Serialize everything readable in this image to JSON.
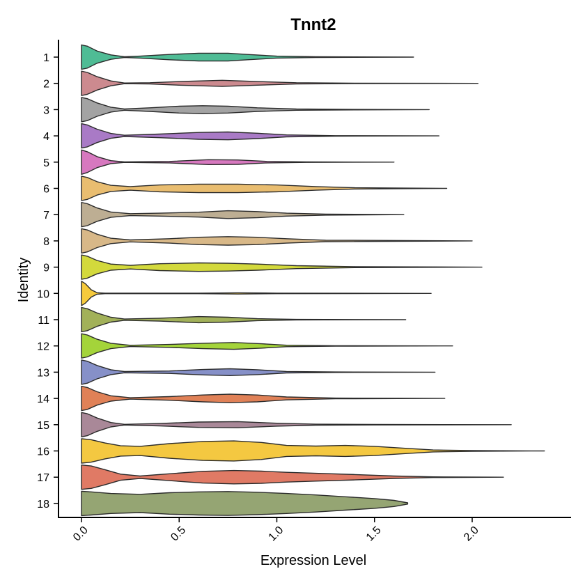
{
  "chart_data": {
    "type": "violin",
    "orientation": "horizontal",
    "title": "Tnnt2",
    "xlabel": "Expression Level",
    "ylabel": "Identity",
    "xlim": [
      -0.12,
      2.5
    ],
    "xticks": [
      "0.0",
      "0.5",
      "1.0",
      "1.5",
      "2.0"
    ],
    "xtick_values": [
      0.0,
      0.5,
      1.0,
      1.5,
      2.0
    ],
    "grid": false,
    "legend": "none",
    "categories": [
      "1",
      "2",
      "3",
      "4",
      "5",
      "6",
      "7",
      "8",
      "9",
      "10",
      "11",
      "12",
      "13",
      "14",
      "15",
      "16",
      "17",
      "18"
    ],
    "series": [
      {
        "max": 1.7,
        "color": "#4fbc95",
        "density": [
          [
            0.0,
            1.0
          ],
          [
            0.03,
            0.9
          ],
          [
            0.08,
            0.5
          ],
          [
            0.15,
            0.18
          ],
          [
            0.22,
            0.03
          ],
          [
            0.3,
            0.08
          ],
          [
            0.45,
            0.22
          ],
          [
            0.6,
            0.32
          ],
          [
            0.75,
            0.32
          ],
          [
            0.85,
            0.22
          ],
          [
            1.0,
            0.08
          ],
          [
            1.2,
            0.03
          ],
          [
            1.7,
            0.0
          ]
        ]
      },
      {
        "max": 2.03,
        "color": "#cc8a8f",
        "density": [
          [
            0.0,
            1.0
          ],
          [
            0.03,
            0.9
          ],
          [
            0.08,
            0.55
          ],
          [
            0.15,
            0.2
          ],
          [
            0.22,
            0.03
          ],
          [
            0.35,
            0.05
          ],
          [
            0.5,
            0.15
          ],
          [
            0.72,
            0.25
          ],
          [
            0.9,
            0.15
          ],
          [
            1.1,
            0.05
          ],
          [
            1.4,
            0.02
          ],
          [
            2.03,
            0.0
          ]
        ]
      },
      {
        "max": 1.78,
        "color": "#a3a3a3",
        "density": [
          [
            0.0,
            1.0
          ],
          [
            0.03,
            0.9
          ],
          [
            0.08,
            0.55
          ],
          [
            0.15,
            0.2
          ],
          [
            0.22,
            0.05
          ],
          [
            0.35,
            0.15
          ],
          [
            0.5,
            0.28
          ],
          [
            0.62,
            0.32
          ],
          [
            0.75,
            0.28
          ],
          [
            0.9,
            0.15
          ],
          [
            1.1,
            0.05
          ],
          [
            1.4,
            0.02
          ],
          [
            1.78,
            0.0
          ]
        ]
      },
      {
        "max": 1.83,
        "color": "#a97ac6",
        "density": [
          [
            0.0,
            1.0
          ],
          [
            0.03,
            0.9
          ],
          [
            0.08,
            0.55
          ],
          [
            0.15,
            0.2
          ],
          [
            0.22,
            0.05
          ],
          [
            0.4,
            0.15
          ],
          [
            0.6,
            0.28
          ],
          [
            0.75,
            0.32
          ],
          [
            0.9,
            0.22
          ],
          [
            1.05,
            0.08
          ],
          [
            1.3,
            0.02
          ],
          [
            1.83,
            0.0
          ]
        ]
      },
      {
        "max": 1.6,
        "color": "#d778bf",
        "density": [
          [
            0.0,
            1.0
          ],
          [
            0.03,
            0.85
          ],
          [
            0.08,
            0.45
          ],
          [
            0.15,
            0.12
          ],
          [
            0.22,
            0.02
          ],
          [
            0.45,
            0.06
          ],
          [
            0.65,
            0.2
          ],
          [
            0.8,
            0.18
          ],
          [
            0.95,
            0.06
          ],
          [
            1.15,
            0.02
          ],
          [
            1.6,
            0.0
          ]
        ]
      },
      {
        "max": 1.87,
        "color": "#e9bd70",
        "density": [
          [
            0.0,
            1.0
          ],
          [
            0.03,
            0.9
          ],
          [
            0.08,
            0.55
          ],
          [
            0.15,
            0.25
          ],
          [
            0.25,
            0.15
          ],
          [
            0.4,
            0.28
          ],
          [
            0.6,
            0.35
          ],
          [
            0.8,
            0.35
          ],
          [
            1.0,
            0.28
          ],
          [
            1.2,
            0.15
          ],
          [
            1.4,
            0.05
          ],
          [
            1.87,
            0.0
          ]
        ]
      },
      {
        "max": 1.65,
        "color": "#bdae93",
        "density": [
          [
            0.0,
            1.0
          ],
          [
            0.03,
            0.9
          ],
          [
            0.08,
            0.55
          ],
          [
            0.15,
            0.22
          ],
          [
            0.25,
            0.08
          ],
          [
            0.4,
            0.12
          ],
          [
            0.6,
            0.2
          ],
          [
            0.75,
            0.32
          ],
          [
            0.9,
            0.25
          ],
          [
            1.05,
            0.12
          ],
          [
            1.25,
            0.04
          ],
          [
            1.65,
            0.0
          ]
        ]
      },
      {
        "max": 2.0,
        "color": "#d8b888",
        "density": [
          [
            0.0,
            1.0
          ],
          [
            0.03,
            0.9
          ],
          [
            0.08,
            0.55
          ],
          [
            0.15,
            0.22
          ],
          [
            0.25,
            0.08
          ],
          [
            0.45,
            0.18
          ],
          [
            0.6,
            0.3
          ],
          [
            0.75,
            0.35
          ],
          [
            0.9,
            0.3
          ],
          [
            1.05,
            0.18
          ],
          [
            1.25,
            0.06
          ],
          [
            2.0,
            0.0
          ]
        ]
      },
      {
        "max": 2.05,
        "color": "#d3d93c",
        "density": [
          [
            0.0,
            1.0
          ],
          [
            0.03,
            0.9
          ],
          [
            0.08,
            0.55
          ],
          [
            0.15,
            0.25
          ],
          [
            0.25,
            0.15
          ],
          [
            0.4,
            0.28
          ],
          [
            0.6,
            0.35
          ],
          [
            0.75,
            0.32
          ],
          [
            0.9,
            0.25
          ],
          [
            1.1,
            0.12
          ],
          [
            1.4,
            0.04
          ],
          [
            2.05,
            0.0
          ]
        ]
      },
      {
        "max": 1.79,
        "color": "#f6ca3c",
        "density": [
          [
            0.0,
            1.0
          ],
          [
            0.02,
            0.8
          ],
          [
            0.05,
            0.3
          ],
          [
            0.08,
            0.06
          ],
          [
            0.12,
            0.02
          ],
          [
            0.6,
            0.02
          ],
          [
            0.8,
            0.05
          ],
          [
            1.0,
            0.02
          ],
          [
            1.79,
            0.0
          ]
        ]
      },
      {
        "max": 1.66,
        "color": "#a2b159",
        "density": [
          [
            0.0,
            1.0
          ],
          [
            0.03,
            0.9
          ],
          [
            0.08,
            0.55
          ],
          [
            0.15,
            0.2
          ],
          [
            0.22,
            0.05
          ],
          [
            0.4,
            0.12
          ],
          [
            0.6,
            0.25
          ],
          [
            0.75,
            0.2
          ],
          [
            0.9,
            0.08
          ],
          [
            1.1,
            0.02
          ],
          [
            1.66,
            0.0
          ]
        ]
      },
      {
        "max": 1.9,
        "color": "#a4d43a",
        "density": [
          [
            0.0,
            1.0
          ],
          [
            0.03,
            0.9
          ],
          [
            0.08,
            0.55
          ],
          [
            0.15,
            0.22
          ],
          [
            0.25,
            0.05
          ],
          [
            0.45,
            0.12
          ],
          [
            0.62,
            0.22
          ],
          [
            0.78,
            0.28
          ],
          [
            0.92,
            0.18
          ],
          [
            1.05,
            0.06
          ],
          [
            1.3,
            0.02
          ],
          [
            1.9,
            0.0
          ]
        ]
      },
      {
        "max": 1.81,
        "color": "#8690c8",
        "density": [
          [
            0.0,
            1.0
          ],
          [
            0.03,
            0.9
          ],
          [
            0.08,
            0.55
          ],
          [
            0.15,
            0.2
          ],
          [
            0.22,
            0.05
          ],
          [
            0.45,
            0.1
          ],
          [
            0.62,
            0.22
          ],
          [
            0.76,
            0.28
          ],
          [
            0.9,
            0.2
          ],
          [
            1.05,
            0.06
          ],
          [
            1.3,
            0.02
          ],
          [
            1.81,
            0.0
          ]
        ]
      },
      {
        "max": 1.86,
        "color": "#e08157",
        "density": [
          [
            0.0,
            1.0
          ],
          [
            0.03,
            0.9
          ],
          [
            0.08,
            0.55
          ],
          [
            0.15,
            0.22
          ],
          [
            0.25,
            0.06
          ],
          [
            0.45,
            0.15
          ],
          [
            0.62,
            0.28
          ],
          [
            0.76,
            0.35
          ],
          [
            0.9,
            0.28
          ],
          [
            1.05,
            0.12
          ],
          [
            1.3,
            0.03
          ],
          [
            1.86,
            0.0
          ]
        ]
      },
      {
        "max": 2.2,
        "color": "#a98898",
        "density": [
          [
            0.0,
            1.0
          ],
          [
            0.03,
            0.9
          ],
          [
            0.08,
            0.55
          ],
          [
            0.15,
            0.18
          ],
          [
            0.22,
            0.03
          ],
          [
            0.4,
            0.1
          ],
          [
            0.6,
            0.22
          ],
          [
            0.8,
            0.25
          ],
          [
            1.0,
            0.12
          ],
          [
            1.2,
            0.04
          ],
          [
            1.5,
            0.02
          ],
          [
            2.2,
            0.0
          ]
        ]
      },
      {
        "max": 2.37,
        "color": "#f4c841",
        "density": [
          [
            0.0,
            1.0
          ],
          [
            0.05,
            0.92
          ],
          [
            0.12,
            0.65
          ],
          [
            0.2,
            0.42
          ],
          [
            0.3,
            0.38
          ],
          [
            0.45,
            0.6
          ],
          [
            0.62,
            0.78
          ],
          [
            0.78,
            0.82
          ],
          [
            0.92,
            0.7
          ],
          [
            1.05,
            0.45
          ],
          [
            1.2,
            0.4
          ],
          [
            1.35,
            0.45
          ],
          [
            1.5,
            0.38
          ],
          [
            1.65,
            0.22
          ],
          [
            1.8,
            0.08
          ],
          [
            2.0,
            0.03
          ],
          [
            2.37,
            0.0
          ]
        ]
      },
      {
        "max": 2.16,
        "color": "#e07a65",
        "density": [
          [
            0.0,
            1.0
          ],
          [
            0.05,
            0.92
          ],
          [
            0.12,
            0.62
          ],
          [
            0.2,
            0.25
          ],
          [
            0.3,
            0.1
          ],
          [
            0.45,
            0.28
          ],
          [
            0.62,
            0.48
          ],
          [
            0.78,
            0.55
          ],
          [
            0.92,
            0.5
          ],
          [
            1.05,
            0.4
          ],
          [
            1.2,
            0.32
          ],
          [
            1.4,
            0.22
          ],
          [
            1.6,
            0.1
          ],
          [
            1.8,
            0.03
          ],
          [
            2.16,
            0.0
          ]
        ]
      },
      {
        "max": 1.67,
        "color": "#95a573",
        "density": [
          [
            0.0,
            1.0
          ],
          [
            0.05,
            0.95
          ],
          [
            0.15,
            0.82
          ],
          [
            0.3,
            0.75
          ],
          [
            0.45,
            0.88
          ],
          [
            0.6,
            0.95
          ],
          [
            0.75,
            0.98
          ],
          [
            0.9,
            0.92
          ],
          [
            1.05,
            0.82
          ],
          [
            1.2,
            0.7
          ],
          [
            1.35,
            0.55
          ],
          [
            1.5,
            0.4
          ],
          [
            1.6,
            0.25
          ],
          [
            1.67,
            0.05
          ]
        ]
      }
    ]
  }
}
